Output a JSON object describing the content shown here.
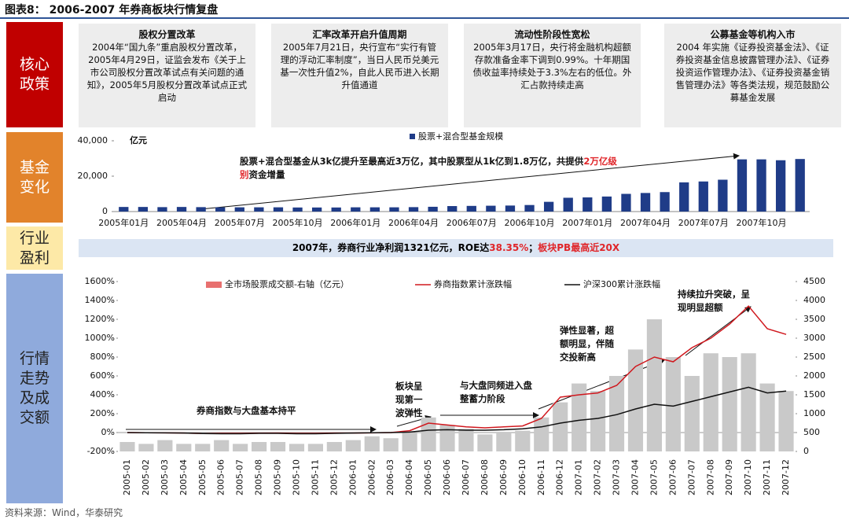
{
  "title": "图表8：  2006-2007 年券商板块行情复盘",
  "sections": [
    "核心政策",
    "基金变化",
    "行业盈利",
    "行情走势及成交额"
  ],
  "policies": [
    {
      "title": "股权分置改革",
      "text": "2004年“国九条”重启股权分置改革，2005年4月29日，证监会发布《关于上市公司股权分置改革试点有关问题的通知》，2005年5月股权分置改革试点正式启动"
    },
    {
      "title": "汇率改革开启升值周期",
      "text": "2005年7月21日，央行宣布“实行有管理的浮动汇率制度”，当日人民币兑美元基一次性升值2%，自此人民币进入长期升值通道"
    },
    {
      "title": "流动性阶段性宽松",
      "text": "2005年3月17日，央行将金融机构超额存款准备金率下调到0.99%。十年期国债收益率持续处于3.3%左右的低位。外汇占款持续走高"
    },
    {
      "title": "公募基金等机构入市",
      "text": "2004 年实施《证券投资基金法》、《证券投资基金信息披露管理办法》、《证券投资运作管理办法》、《证券投资基金销售管理办法》等各类法规，规范鼓励公募基金发展"
    }
  ],
  "profit": [
    "2007年，券商行业净利润1321亿元，ROE达",
    "38.35%",
    "；",
    "板块PB最高近20X"
  ],
  "source": "资料来源：Wind，华泰研究",
  "chart_data": [
    {
      "type": "bar",
      "unit": "亿元",
      "annotation": [
        "股票+混合型基金从3k亿提升至最高近3万亿，其中股票型从1k亿到1.8万亿，共提供",
        "2万亿级别",
        "资金增量"
      ],
      "categories": [
        "2005年01月",
        null,
        null,
        "2005年04月",
        null,
        null,
        "2005年07月",
        null,
        null,
        "2005年10月",
        null,
        null,
        "2006年01月",
        null,
        null,
        "2006年04月",
        null,
        null,
        "2006年07月",
        null,
        null,
        "2006年10月",
        null,
        null,
        "2007年01月",
        null,
        null,
        "2007年04月",
        null,
        null,
        "2007年07月",
        null,
        null,
        "2007年10月",
        null,
        null
      ],
      "series": [
        {
          "name": "股票+混合型基金规模",
          "color": "#1f3c88",
          "values": [
            2600,
            2600,
            2500,
            2600,
            2500,
            2400,
            2400,
            2400,
            2400,
            2300,
            2300,
            2300,
            2400,
            2400,
            2400,
            2500,
            2700,
            3100,
            3200,
            3300,
            3400,
            3700,
            5500,
            7800,
            8000,
            8500,
            10000,
            10500,
            11000,
            16500,
            17000,
            18000,
            29500,
            29500,
            29000,
            29700
          ]
        }
      ],
      "ylim": [
        0,
        40000
      ],
      "yticks": [
        0,
        {
          "value": 20000,
          "label": "20,000"
        },
        {
          "value": 40000,
          "label": "40,000"
        }
      ]
    },
    {
      "type": "combo",
      "categories": [
        "2005-01",
        "2005-02",
        "2005-03",
        "2005-04",
        "2005-05",
        "2005-06",
        "2005-07",
        "2005-08",
        "2005-09",
        "2005-10",
        "2005-11",
        "2005-12",
        "2006-01",
        "2006-02",
        "2006-03",
        "2006-04",
        "2006-05",
        "2006-06",
        "2006-07",
        "2006-08",
        "2006-09",
        "2006-10",
        "2006-11",
        "2006-12",
        "2007-01",
        "2007-02",
        "2007-03",
        "2007-04",
        "2007-05",
        "2007-06",
        "2007-07",
        "2007-08",
        "2007-09",
        "2007-10",
        "2007-11",
        "2007-12"
      ],
      "series": [
        {
          "name": "全市场股票成交额-右轴（亿元）",
          "type": "bar",
          "axis": "y2",
          "color": "#c9c9c9",
          "legend_color": "#e8706f",
          "values": [
            250,
            200,
            300,
            200,
            200,
            300,
            200,
            250,
            250,
            200,
            200,
            250,
            300,
            400,
            350,
            500,
            900,
            700,
            600,
            450,
            500,
            550,
            900,
            1300,
            1800,
            1600,
            2000,
            2700,
            3500,
            2500,
            2000,
            2600,
            2500,
            2600,
            1800,
            1600
          ]
        },
        {
          "name": "券商指数累计涨跌幅",
          "type": "line",
          "color": "#d0181e",
          "values": [
            0,
            -2,
            -3,
            -5,
            -10,
            -8,
            -8,
            -6,
            -5,
            -8,
            -8,
            -5,
            -5,
            -3,
            0,
            20,
            100,
            80,
            60,
            50,
            60,
            70,
            150,
            375,
            400,
            420,
            500,
            700,
            800,
            750,
            900,
            1000,
            1150,
            1340,
            1100,
            1040
          ]
        },
        {
          "name": "沪深300累计涨跌幅",
          "type": "line",
          "color": "#111111",
          "values": [
            0,
            -2,
            -3,
            -5,
            -10,
            -12,
            -12,
            -8,
            -8,
            -12,
            -12,
            -8,
            -5,
            -2,
            0,
            5,
            25,
            30,
            25,
            25,
            30,
            40,
            60,
            100,
            130,
            150,
            190,
            250,
            300,
            280,
            330,
            380,
            430,
            480,
            420,
            440
          ]
        }
      ],
      "ylim": [
        -200,
        1600
      ],
      "yticks": [
        {
          "value": -200,
          "label": "-200%"
        },
        {
          "value": 0,
          "label": "0%"
        },
        {
          "value": 200,
          "label": "200%"
        },
        {
          "value": 400,
          "label": "400%"
        },
        {
          "value": 600,
          "label": "600%"
        },
        {
          "value": 800,
          "label": "800%"
        },
        {
          "value": 1000,
          "label": "1000%"
        },
        {
          "value": 1200,
          "label": "1200%"
        },
        {
          "value": 1400,
          "label": "1400%"
        },
        {
          "value": 1600,
          "label": "1600%"
        }
      ],
      "y2lim": [
        0,
        4500
      ],
      "y2ticks": [
        0,
        500,
        1000,
        1500,
        2000,
        2500,
        3000,
        3500,
        4000,
        4500
      ],
      "annotations": [
        "券商指数与大盘基本持平",
        "板块呈现第一波弹性",
        "与大盘同频进入盘整蓄力阶段",
        "弹性显著，超额明显，伴随交投新高",
        "持续拉升突破，呈现明显超额"
      ]
    }
  ]
}
